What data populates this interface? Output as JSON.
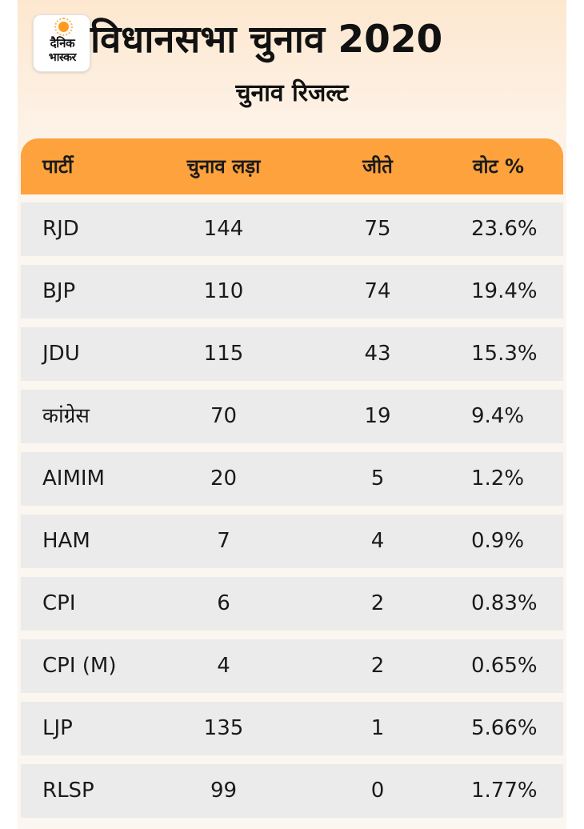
{
  "brand": {
    "line1": "दैनिक",
    "line2": "भास्कर"
  },
  "title": "विधानसभा चुनाव 2020",
  "subtitle": "चुनाव रिजल्ट",
  "table": {
    "headers": {
      "party": "पार्टी",
      "contested": "चुनाव लड़ा",
      "won": "जीते",
      "vote_pct": "वोट %"
    },
    "rows": [
      {
        "party": "RJD",
        "contested": "144",
        "won": "75",
        "vote_pct": "23.6%"
      },
      {
        "party": "BJP",
        "contested": "110",
        "won": "74",
        "vote_pct": "19.4%"
      },
      {
        "party": "JDU",
        "contested": "115",
        "won": "43",
        "vote_pct": "15.3%"
      },
      {
        "party": "कांग्रेस",
        "contested": "70",
        "won": "19",
        "vote_pct": "9.4%"
      },
      {
        "party": "AIMIM",
        "contested": "20",
        "won": "5",
        "vote_pct": "1.2%"
      },
      {
        "party": "HAM",
        "contested": "7",
        "won": "4",
        "vote_pct": "0.9%"
      },
      {
        "party": "CPI",
        "contested": "6",
        "won": "2",
        "vote_pct": "0.83%"
      },
      {
        "party": "CPI (M)",
        "contested": "4",
        "won": "2",
        "vote_pct": "0.65%"
      },
      {
        "party": "LJP",
        "contested": "135",
        "won": "1",
        "vote_pct": "5.66%"
      },
      {
        "party": "RLSP",
        "contested": "99",
        "won": "0",
        "vote_pct": "1.77%"
      }
    ]
  },
  "colors": {
    "header_bg": "#fda23c",
    "row_bg": "#ebebeb",
    "panel_bg": "#fdf1e4",
    "logo_accent": "#ff9a1f"
  }
}
